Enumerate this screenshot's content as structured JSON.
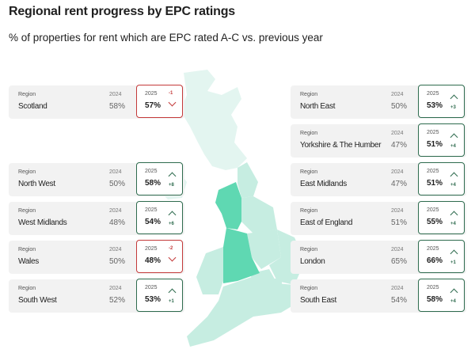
{
  "title": "Regional rent progress by EPC ratings",
  "subtitle": "% of properties for rent which are EPC rated A-C vs. previous year",
  "labels": {
    "region": "Region",
    "year_prev": "2024",
    "year_curr": "2025"
  },
  "colors": {
    "up": "#2e6b4e",
    "down": "#c43a3a",
    "map_highlight": "#5fd8b2",
    "map_base": "#c6ede1",
    "map_scotland": "#e3f5f0"
  },
  "regions": [
    {
      "name": "Scotland",
      "v2024": "58%",
      "v2025": "57%",
      "change": "-1",
      "direction": "down"
    },
    {
      "name": "North West",
      "v2024": "50%",
      "v2025": "58%",
      "change": "+8",
      "direction": "up"
    },
    {
      "name": "West Midlands",
      "v2024": "48%",
      "v2025": "54%",
      "change": "+6",
      "direction": "up"
    },
    {
      "name": "Wales",
      "v2024": "50%",
      "v2025": "48%",
      "change": "-2",
      "direction": "down"
    },
    {
      "name": "South West",
      "v2024": "52%",
      "v2025": "53%",
      "change": "+1",
      "direction": "up"
    },
    {
      "name": "North East",
      "v2024": "50%",
      "v2025": "53%",
      "change": "+3",
      "direction": "up"
    },
    {
      "name": "Yorkshire & The Humber",
      "v2024": "47%",
      "v2025": "51%",
      "change": "+4",
      "direction": "up"
    },
    {
      "name": "East Midlands",
      "v2024": "47%",
      "v2025": "51%",
      "change": "+4",
      "direction": "up"
    },
    {
      "name": "East of England",
      "v2024": "51%",
      "v2025": "55%",
      "change": "+4",
      "direction": "up"
    },
    {
      "name": "London",
      "v2024": "65%",
      "v2025": "66%",
      "change": "+1",
      "direction": "up"
    },
    {
      "name": "South East",
      "v2024": "54%",
      "v2025": "58%",
      "change": "+4",
      "direction": "up"
    }
  ]
}
